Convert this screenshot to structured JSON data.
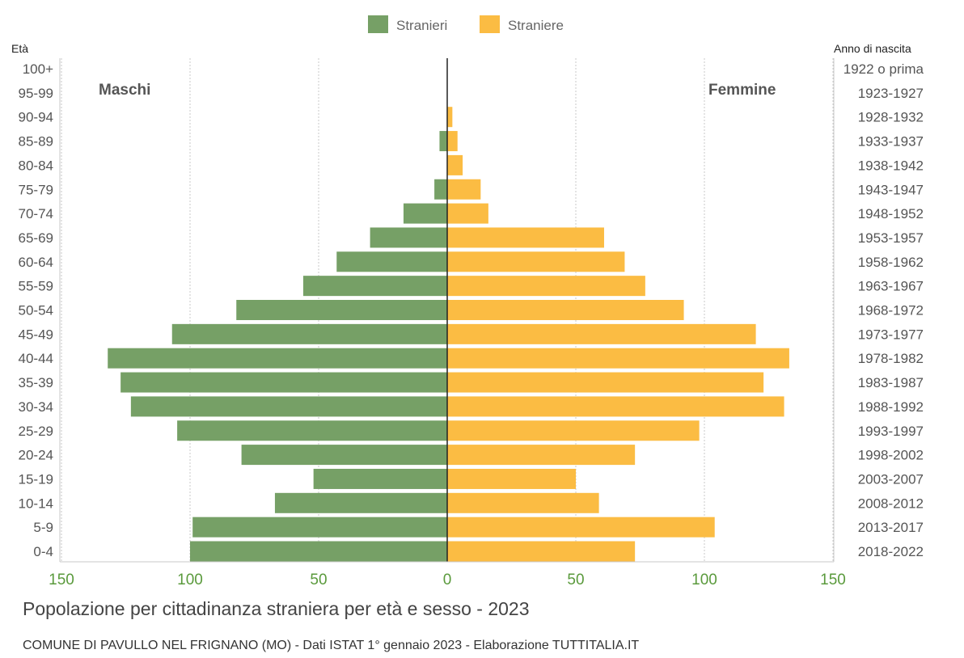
{
  "title": "Popolazione per cittadinanza straniera per età e sesso - 2023",
  "subtitle": "COMUNE DI PAVULLO NEL FRIGNANO (MO) - Dati ISTAT 1° gennaio 2023 - Elaborazione TUTTITALIA.IT",
  "colors": {
    "male": "#76a066",
    "female": "#fbbc43",
    "axis": "#222222",
    "tick": "#5a9a3c",
    "grid": "#c8c8c8"
  },
  "chart_data": {
    "type": "bar",
    "orientation": "horizontal-pyramid",
    "title": "Popolazione per cittadinanza straniera per età e sesso - 2023",
    "left_axis_header": "Età",
    "right_axis_header": "Anno di nascita",
    "left_group_label": "Maschi",
    "right_group_label": "Femmine",
    "xlim": [
      -150,
      150
    ],
    "xticks": [
      "150",
      "100",
      "50",
      "0",
      "50",
      "100",
      "150"
    ],
    "grid": true,
    "legend_position": "top-center",
    "categories": [
      "100+",
      "95-99",
      "90-94",
      "85-89",
      "80-84",
      "75-79",
      "70-74",
      "65-69",
      "60-64",
      "55-59",
      "50-54",
      "45-49",
      "40-44",
      "35-39",
      "30-34",
      "25-29",
      "20-24",
      "15-19",
      "10-14",
      "5-9",
      "0-4"
    ],
    "birth_years": [
      "1922 o prima",
      "1923-1927",
      "1928-1932",
      "1933-1937",
      "1938-1942",
      "1943-1947",
      "1948-1952",
      "1953-1957",
      "1958-1962",
      "1963-1967",
      "1968-1972",
      "1973-1977",
      "1978-1982",
      "1983-1987",
      "1988-1992",
      "1993-1997",
      "1998-2002",
      "2003-2007",
      "2008-2012",
      "2013-2017",
      "2018-2022"
    ],
    "series": [
      {
        "name": "Stranieri",
        "values": [
          0,
          0,
          0,
          3,
          0,
          5,
          17,
          30,
          43,
          56,
          82,
          107,
          132,
          127,
          123,
          105,
          80,
          52,
          67,
          99,
          100
        ]
      },
      {
        "name": "Straniere",
        "values": [
          0,
          0,
          2,
          4,
          6,
          13,
          16,
          61,
          69,
          77,
          92,
          120,
          133,
          123,
          131,
          98,
          73,
          50,
          59,
          104,
          73
        ]
      }
    ]
  }
}
